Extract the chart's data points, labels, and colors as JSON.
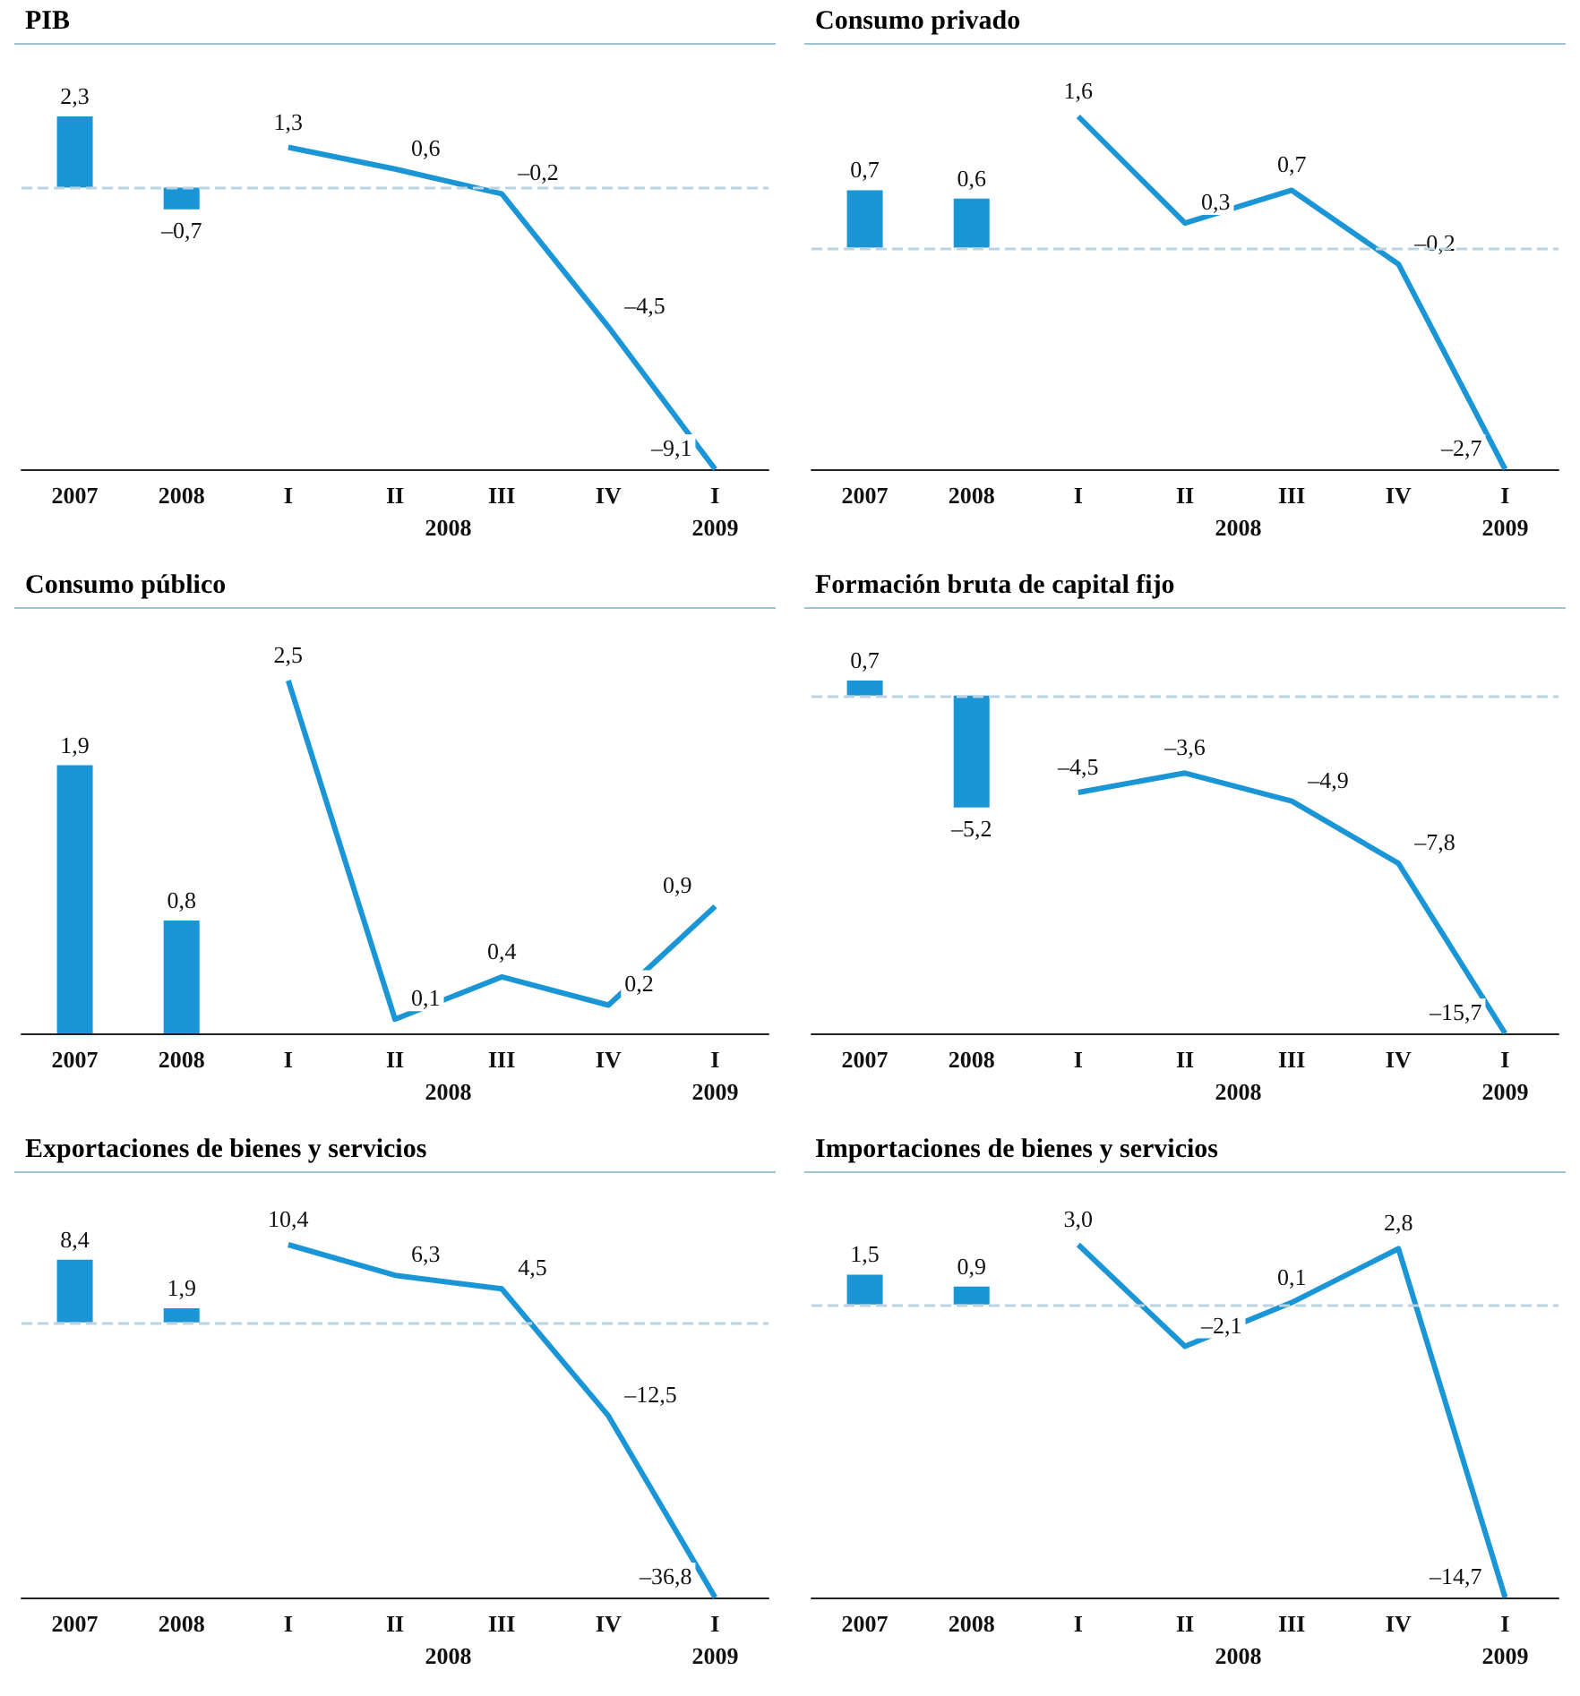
{
  "chart_data": [
    {
      "type": "bar",
      "title": "PIB",
      "categories": [
        "2007",
        "2008",
        "I",
        "II",
        "III",
        "IV",
        "I"
      ],
      "annotations": [
        "2008",
        "2009"
      ],
      "marker": "none",
      "ref_lines": [
        {
          "axis": "y",
          "value": 0,
          "line_style": "dashed",
          "color": "#b9d3e2"
        }
      ],
      "series": [
        {
          "color": "#1a95d6",
          "values": [
            2.3,
            -0.7,
            null,
            null,
            null,
            null,
            null
          ],
          "value_labels": [
            "2,3",
            "–0,7",
            null,
            null,
            null,
            null,
            null
          ]
        },
        {
          "type": "line",
          "color": "#1a95d6",
          "values": [
            null,
            null,
            1.3,
            0.6,
            -0.2,
            -4.5,
            -9.1
          ],
          "value_labels": [
            null,
            null,
            "1,3",
            "0,6",
            "–0,2",
            "–4,5",
            "–9,1"
          ]
        }
      ]
    },
    {
      "type": "bar",
      "title": "Consumo privado",
      "categories": [
        "2007",
        "2008",
        "I",
        "II",
        "III",
        "IV",
        "I"
      ],
      "annotations": [
        "2008",
        "2009"
      ],
      "marker": "none",
      "ref_lines": [
        {
          "axis": "y",
          "value": 0,
          "line_style": "dashed",
          "color": "#b9d3e2"
        }
      ],
      "series": [
        {
          "color": "#1a95d6",
          "values": [
            0.7,
            0.6,
            null,
            null,
            null,
            null,
            null
          ],
          "value_labels": [
            "0,7",
            "0,6",
            null,
            null,
            null,
            null,
            null
          ]
        },
        {
          "type": "line",
          "color": "#1a95d6",
          "values": [
            null,
            null,
            1.6,
            0.3,
            0.7,
            -0.2,
            -2.7
          ],
          "value_labels": [
            null,
            null,
            "1,6",
            "0,3",
            "0,7",
            "–0,2",
            "–2,7"
          ]
        }
      ]
    },
    {
      "type": "bar",
      "title": "Consumo público",
      "categories": [
        "2007",
        "2008",
        "I",
        "II",
        "III",
        "IV",
        "I"
      ],
      "annotations": [
        "2008",
        "2009"
      ],
      "marker": "none",
      "series": [
        {
          "color": "#1a95d6",
          "values": [
            1.9,
            0.8,
            null,
            null,
            null,
            null,
            null
          ],
          "value_labels": [
            "1,9",
            "0,8",
            null,
            null,
            null,
            null,
            null
          ]
        },
        {
          "type": "line",
          "color": "#1a95d6",
          "values": [
            null,
            null,
            2.5,
            0.1,
            0.4,
            0.2,
            0.9
          ],
          "value_labels": [
            null,
            null,
            "2,5",
            "0,1",
            "0,4",
            "0,2",
            "0,9"
          ]
        }
      ]
    },
    {
      "type": "bar",
      "title": "Formación bruta de capital fijo",
      "categories": [
        "2007",
        "2008",
        "I",
        "II",
        "III",
        "IV",
        "I"
      ],
      "annotations": [
        "2008",
        "2009"
      ],
      "marker": "none",
      "ref_lines": [
        {
          "axis": "y",
          "value": 0,
          "line_style": "dashed",
          "color": "#b9d3e2"
        }
      ],
      "series": [
        {
          "color": "#1a95d6",
          "values": [
            0.7,
            -5.2,
            null,
            null,
            null,
            null,
            null
          ],
          "value_labels": [
            "0,7",
            "–5,2",
            null,
            null,
            null,
            null,
            null
          ]
        },
        {
          "type": "line",
          "color": "#1a95d6",
          "values": [
            null,
            null,
            -4.5,
            -3.6,
            -4.9,
            -7.8,
            -15.7
          ],
          "value_labels": [
            null,
            null,
            "–4,5",
            "–3,6",
            "–4,9",
            "–7,8",
            "–15,7"
          ]
        }
      ]
    },
    {
      "type": "bar",
      "title": "Exportaciones de bienes y servicios",
      "categories": [
        "2007",
        "2008",
        "I",
        "II",
        "III",
        "IV",
        "I"
      ],
      "annotations": [
        "2008",
        "2009"
      ],
      "marker": "none",
      "ref_lines": [
        {
          "axis": "y",
          "value": 0,
          "line_style": "dashed",
          "color": "#b9d3e2"
        }
      ],
      "series": [
        {
          "color": "#1a95d6",
          "values": [
            8.4,
            1.9,
            null,
            null,
            null,
            null,
            null
          ],
          "value_labels": [
            "8,4",
            "1,9",
            null,
            null,
            null,
            null,
            null
          ]
        },
        {
          "type": "line",
          "color": "#1a95d6",
          "values": [
            null,
            null,
            10.4,
            6.3,
            4.5,
            -12.5,
            -36.8
          ],
          "value_labels": [
            null,
            null,
            "10,4",
            "6,3",
            "4,5",
            "–12,5",
            "–36,8"
          ]
        }
      ]
    },
    {
      "type": "bar",
      "title": "Importaciones de bienes y servicios",
      "categories": [
        "2007",
        "2008",
        "I",
        "II",
        "III",
        "IV",
        "I"
      ],
      "annotations": [
        "2008",
        "2009"
      ],
      "marker": "none",
      "ref_lines": [
        {
          "axis": "y",
          "value": 0,
          "line_style": "dashed",
          "color": "#b9d3e2"
        }
      ],
      "series": [
        {
          "color": "#1a95d6",
          "values": [
            1.5,
            0.9,
            null,
            null,
            null,
            null,
            null
          ],
          "value_labels": [
            "1,5",
            "0,9",
            null,
            null,
            null,
            null,
            null
          ]
        },
        {
          "type": "line",
          "color": "#1a95d6",
          "values": [
            null,
            null,
            3.0,
            -2.1,
            0.1,
            2.8,
            -14.7
          ],
          "value_labels": [
            null,
            null,
            "3,0",
            "–2,1",
            "0,1",
            "2,8",
            "–14,7"
          ]
        }
      ]
    }
  ]
}
